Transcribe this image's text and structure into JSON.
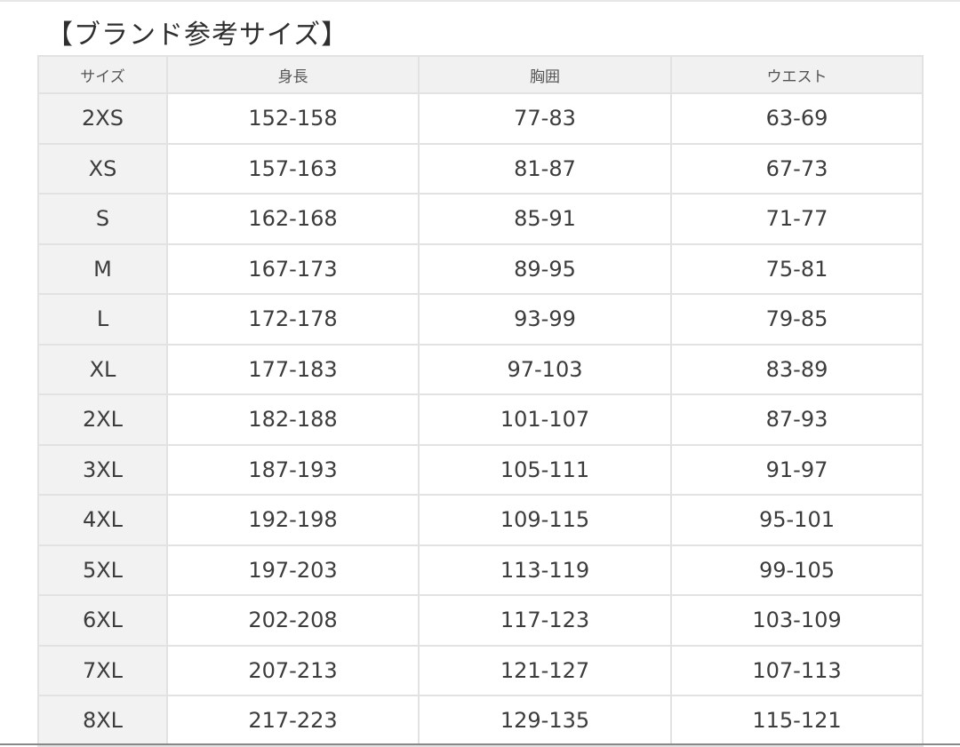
{
  "title": "【ブランド参考サイズ】",
  "table": {
    "headers": [
      "サイズ",
      "身長",
      "胸囲",
      "ウエスト"
    ],
    "rows": [
      [
        "2XS",
        "152-158",
        "77-83",
        "63-69"
      ],
      [
        "XS",
        "157-163",
        "81-87",
        "67-73"
      ],
      [
        "S",
        "162-168",
        "85-91",
        "71-77"
      ],
      [
        "M",
        "167-173",
        "89-95",
        "75-81"
      ],
      [
        "L",
        "172-178",
        "93-99",
        "79-85"
      ],
      [
        "XL",
        "177-183",
        "97-103",
        "83-89"
      ],
      [
        "2XL",
        "182-188",
        "101-107",
        "87-93"
      ],
      [
        "3XL",
        "187-193",
        "105-111",
        "91-97"
      ],
      [
        "4XL",
        "192-198",
        "109-115",
        "95-101"
      ],
      [
        "5XL",
        "197-203",
        "113-119",
        "99-105"
      ],
      [
        "6XL",
        "202-208",
        "117-123",
        "103-109"
      ],
      [
        "7XL",
        "207-213",
        "121-127",
        "107-113"
      ],
      [
        "8XL",
        "217-223",
        "129-135",
        "115-121"
      ]
    ]
  }
}
